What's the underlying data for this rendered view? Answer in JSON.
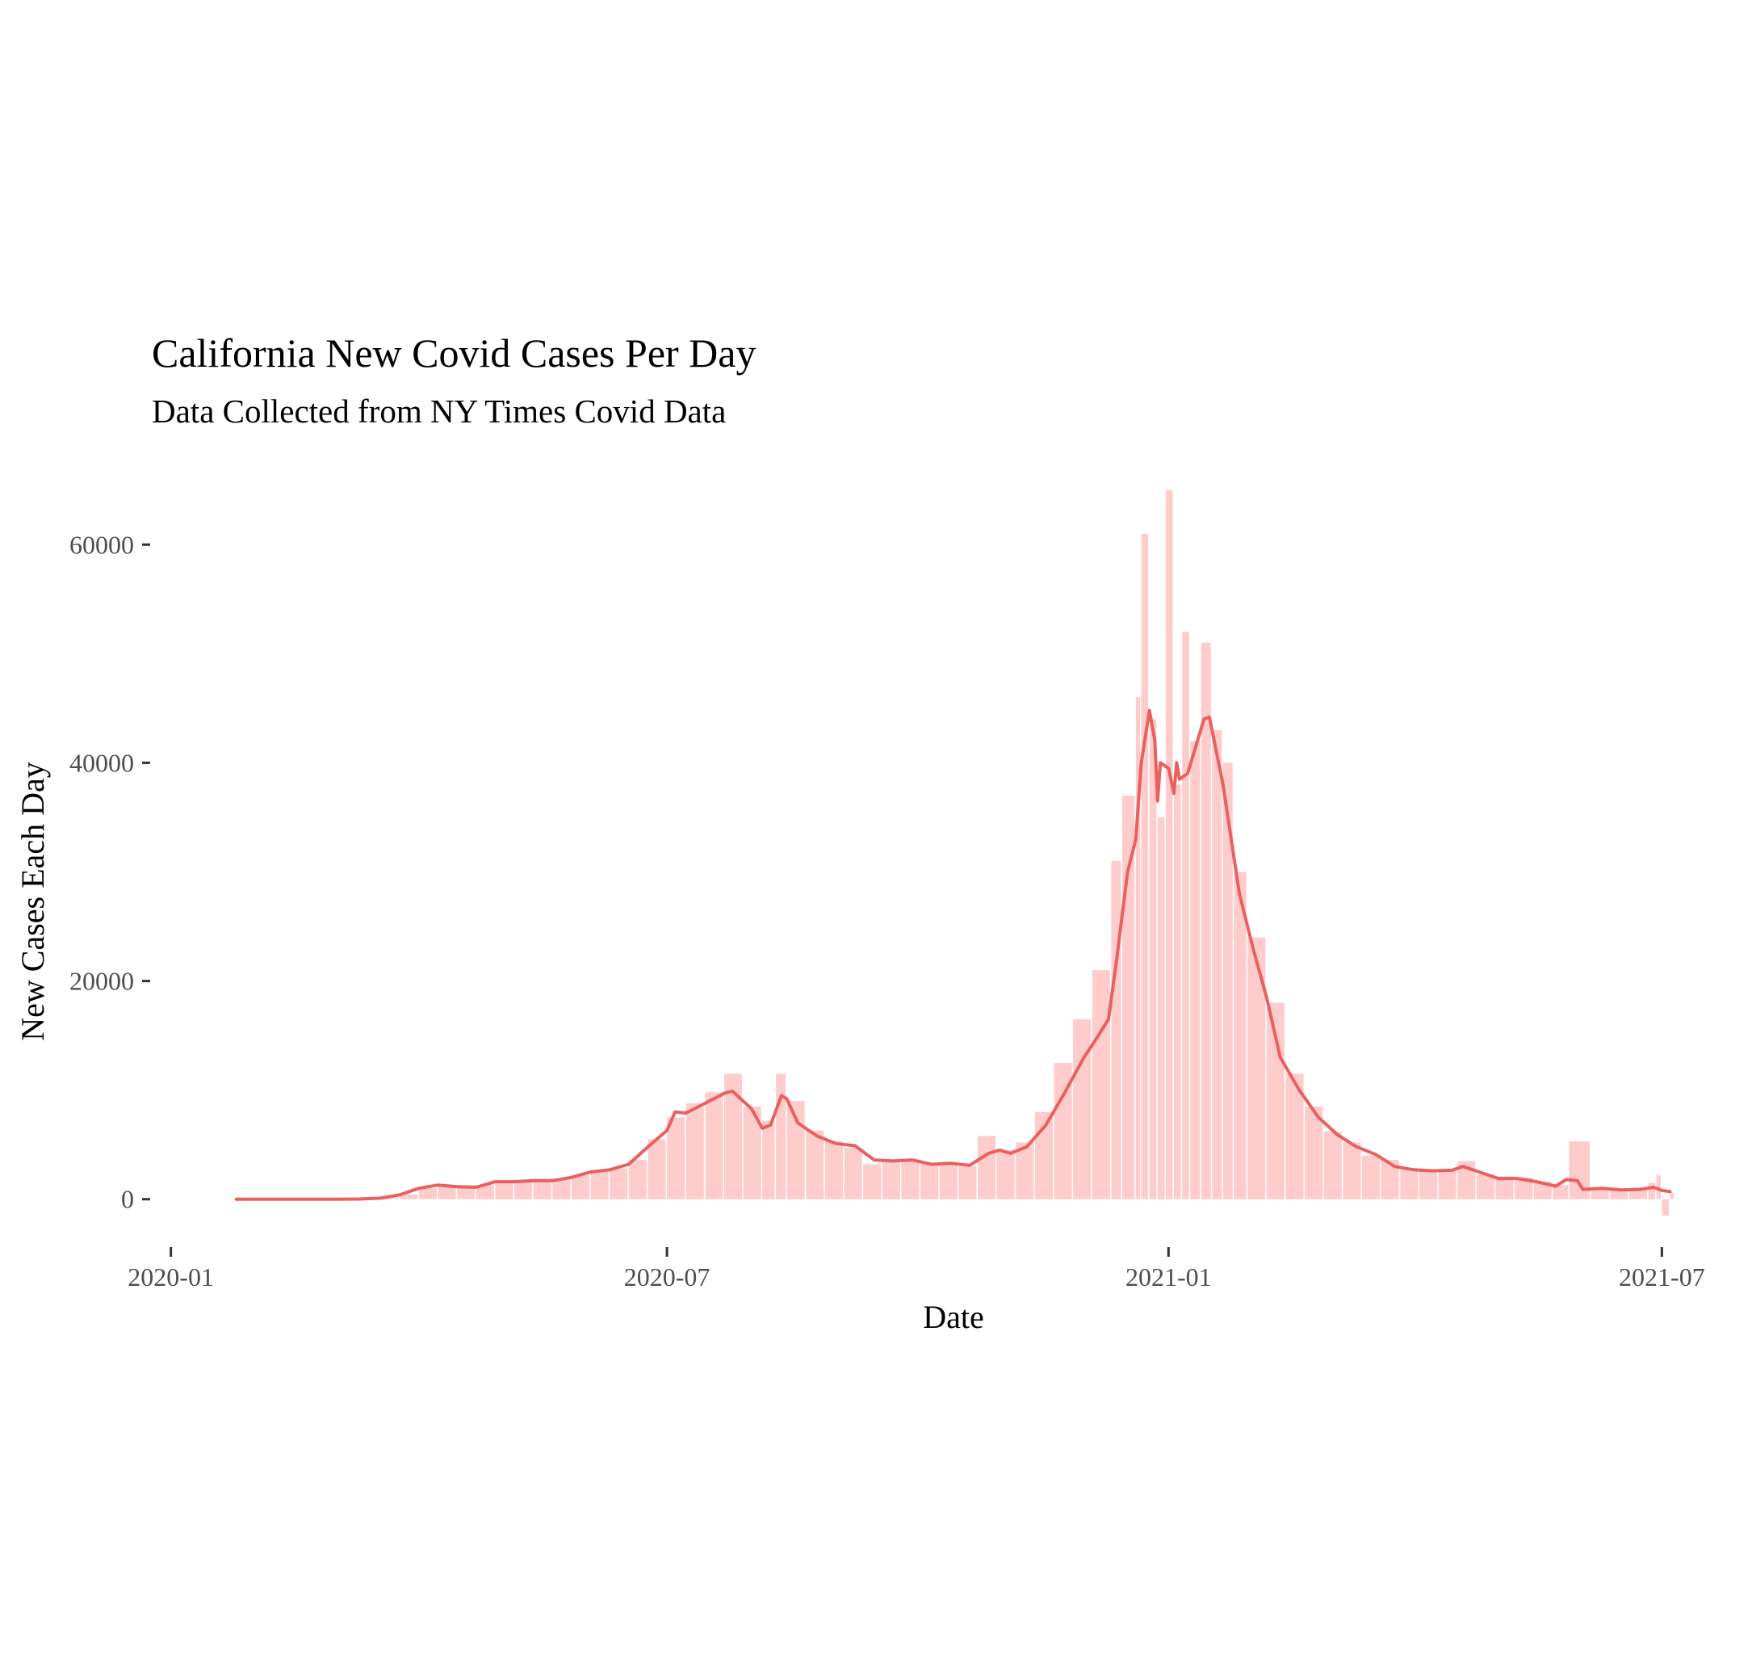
{
  "chart_data": {
    "type": "bar",
    "title": "California New Covid Cases Per Day",
    "subtitle": "Data Collected from NY Times Covid Data",
    "xlabel": "Date",
    "ylabel": "New Cases Each Day",
    "x_ticks": [
      {
        "date": "2020-01-01",
        "label": "2020-01"
      },
      {
        "date": "2020-07-01",
        "label": "2020-07"
      },
      {
        "date": "2021-01-01",
        "label": "2021-01"
      },
      {
        "date": "2021-07-01",
        "label": "2021-07"
      }
    ],
    "y_ticks": [
      0,
      20000,
      40000,
      60000
    ],
    "xlim": [
      "2019-12-25",
      "2021-07-08"
    ],
    "ylim": [
      -3500,
      65500
    ],
    "grid": false,
    "legend": "none",
    "colors": {
      "bars": "#ffcccc",
      "line": "#e8605f",
      "ticks": "#333333"
    },
    "series": [
      {
        "type": "bar",
        "values": [
          [
            "2020-01-25",
            0
          ],
          [
            "2020-03-01",
            5
          ],
          [
            "2020-03-10",
            40
          ],
          [
            "2020-03-18",
            120
          ],
          [
            "2020-03-25",
            450
          ],
          [
            "2020-04-01",
            1000
          ],
          [
            "2020-04-08",
            1200
          ],
          [
            "2020-04-15",
            1150
          ],
          [
            "2020-04-22",
            1300
          ],
          [
            "2020-04-29",
            1700
          ],
          [
            "2020-05-06",
            1600
          ],
          [
            "2020-05-13",
            1800
          ],
          [
            "2020-05-20",
            1900
          ],
          [
            "2020-05-27",
            2200
          ],
          [
            "2020-06-03",
            2600
          ],
          [
            "2020-06-10",
            2800
          ],
          [
            "2020-06-17",
            3600
          ],
          [
            "2020-06-24",
            5500
          ],
          [
            "2020-07-01",
            7500
          ],
          [
            "2020-07-08",
            8800
          ],
          [
            "2020-07-15",
            9800
          ],
          [
            "2020-07-22",
            11500
          ],
          [
            "2020-07-29",
            8500
          ],
          [
            "2020-08-05",
            7200
          ],
          [
            "2020-08-10",
            11500
          ],
          [
            "2020-08-14",
            9000
          ],
          [
            "2020-08-21",
            6300
          ],
          [
            "2020-08-28",
            5300
          ],
          [
            "2020-09-04",
            4700
          ],
          [
            "2020-09-11",
            3200
          ],
          [
            "2020-09-18",
            3400
          ],
          [
            "2020-09-25",
            3600
          ],
          [
            "2020-10-02",
            3200
          ],
          [
            "2020-10-09",
            3300
          ],
          [
            "2020-10-16",
            3000
          ],
          [
            "2020-10-23",
            5800
          ],
          [
            "2020-10-30",
            4500
          ],
          [
            "2020-11-06",
            5200
          ],
          [
            "2020-11-13",
            8000
          ],
          [
            "2020-11-20",
            12500
          ],
          [
            "2020-11-27",
            16500
          ],
          [
            "2020-12-04",
            21000
          ],
          [
            "2020-12-11",
            31000
          ],
          [
            "2020-12-15",
            37000
          ],
          [
            "2020-12-20",
            46000
          ],
          [
            "2020-12-22",
            61000
          ],
          [
            "2020-12-25",
            44000
          ],
          [
            "2020-12-28",
            35000
          ],
          [
            "2020-12-31",
            65000
          ],
          [
            "2021-01-03",
            38000
          ],
          [
            "2021-01-06",
            52000
          ],
          [
            "2021-01-09",
            42000
          ],
          [
            "2021-01-13",
            51000
          ],
          [
            "2021-01-17",
            43000
          ],
          [
            "2021-01-21",
            40000
          ],
          [
            "2021-01-25",
            30000
          ],
          [
            "2021-01-30",
            24000
          ],
          [
            "2021-02-06",
            18000
          ],
          [
            "2021-02-13",
            11500
          ],
          [
            "2021-02-20",
            8500
          ],
          [
            "2021-02-27",
            6200
          ],
          [
            "2021-03-06",
            5200
          ],
          [
            "2021-03-13",
            4000
          ],
          [
            "2021-03-20",
            3600
          ],
          [
            "2021-03-27",
            2800
          ],
          [
            "2021-04-03",
            2600
          ],
          [
            "2021-04-10",
            2700
          ],
          [
            "2021-04-17",
            3500
          ],
          [
            "2021-04-24",
            2300
          ],
          [
            "2021-05-01",
            2100
          ],
          [
            "2021-05-08",
            2000
          ],
          [
            "2021-05-15",
            1600
          ],
          [
            "2021-05-22",
            1300
          ],
          [
            "2021-05-28",
            5300
          ],
          [
            "2021-06-05",
            1000
          ],
          [
            "2021-06-12",
            900
          ],
          [
            "2021-06-19",
            950
          ],
          [
            "2021-06-26",
            1500
          ],
          [
            "2021-06-29",
            2200
          ],
          [
            "2021-07-01",
            -1500
          ],
          [
            "2021-07-04",
            600
          ]
        ]
      },
      {
        "type": "line",
        "values": [
          [
            "2020-01-25",
            0
          ],
          [
            "2020-03-01",
            0
          ],
          [
            "2020-03-10",
            20
          ],
          [
            "2020-03-18",
            100
          ],
          [
            "2020-03-25",
            400
          ],
          [
            "2020-04-01",
            1000
          ],
          [
            "2020-04-08",
            1300
          ],
          [
            "2020-04-15",
            1150
          ],
          [
            "2020-04-22",
            1100
          ],
          [
            "2020-04-29",
            1600
          ],
          [
            "2020-05-06",
            1600
          ],
          [
            "2020-05-13",
            1700
          ],
          [
            "2020-05-20",
            1700
          ],
          [
            "2020-05-27",
            2000
          ],
          [
            "2020-06-03",
            2500
          ],
          [
            "2020-06-10",
            2700
          ],
          [
            "2020-06-17",
            3200
          ],
          [
            "2020-06-24",
            4800
          ],
          [
            "2020-07-01",
            6300
          ],
          [
            "2020-07-04",
            8000
          ],
          [
            "2020-07-08",
            7900
          ],
          [
            "2020-07-15",
            8800
          ],
          [
            "2020-07-22",
            9700
          ],
          [
            "2020-07-25",
            9900
          ],
          [
            "2020-08-01",
            8300
          ],
          [
            "2020-08-05",
            6500
          ],
          [
            "2020-08-08",
            6800
          ],
          [
            "2020-08-12",
            9500
          ],
          [
            "2020-08-14",
            9200
          ],
          [
            "2020-08-18",
            7000
          ],
          [
            "2020-08-25",
            5800
          ],
          [
            "2020-09-01",
            5100
          ],
          [
            "2020-09-08",
            4900
          ],
          [
            "2020-09-15",
            3600
          ],
          [
            "2020-09-22",
            3500
          ],
          [
            "2020-09-29",
            3600
          ],
          [
            "2020-10-06",
            3200
          ],
          [
            "2020-10-13",
            3300
          ],
          [
            "2020-10-20",
            3100
          ],
          [
            "2020-10-27",
            4200
          ],
          [
            "2020-10-31",
            4500
          ],
          [
            "2020-11-04",
            4200
          ],
          [
            "2020-11-10",
            4800
          ],
          [
            "2020-11-17",
            6800
          ],
          [
            "2020-11-24",
            9800
          ],
          [
            "2020-12-01",
            13000
          ],
          [
            "2020-12-05",
            14500
          ],
          [
            "2020-12-10",
            16500
          ],
          [
            "2020-12-13",
            22000
          ],
          [
            "2020-12-17",
            30000
          ],
          [
            "2020-12-20",
            33000
          ],
          [
            "2020-12-22",
            40000
          ],
          [
            "2020-12-25",
            44800
          ],
          [
            "2020-12-27",
            42000
          ],
          [
            "2020-12-28",
            36500
          ],
          [
            "2020-12-29",
            40000
          ],
          [
            "2021-01-01",
            39500
          ],
          [
            "2021-01-03",
            37200
          ],
          [
            "2021-01-04",
            40000
          ],
          [
            "2021-01-05",
            38500
          ],
          [
            "2021-01-08",
            39000
          ],
          [
            "2021-01-11",
            41500
          ],
          [
            "2021-01-14",
            44000
          ],
          [
            "2021-01-16",
            44200
          ],
          [
            "2021-01-21",
            38000
          ],
          [
            "2021-01-27",
            28000
          ],
          [
            "2021-02-01",
            23000
          ],
          [
            "2021-02-06",
            18500
          ],
          [
            "2021-02-11",
            13000
          ],
          [
            "2021-02-18",
            10000
          ],
          [
            "2021-02-25",
            7500
          ],
          [
            "2021-03-04",
            5900
          ],
          [
            "2021-03-11",
            4800
          ],
          [
            "2021-03-18",
            4100
          ],
          [
            "2021-03-25",
            3000
          ],
          [
            "2021-04-01",
            2700
          ],
          [
            "2021-04-08",
            2600
          ],
          [
            "2021-04-15",
            2650
          ],
          [
            "2021-04-19",
            3000
          ],
          [
            "2021-04-25",
            2500
          ],
          [
            "2021-05-02",
            1900
          ],
          [
            "2021-05-09",
            1900
          ],
          [
            "2021-05-16",
            1600
          ],
          [
            "2021-05-23",
            1200
          ],
          [
            "2021-05-27",
            1800
          ],
          [
            "2021-05-31",
            1700
          ],
          [
            "2021-06-02",
            900
          ],
          [
            "2021-06-09",
            1000
          ],
          [
            "2021-06-16",
            850
          ],
          [
            "2021-06-23",
            900
          ],
          [
            "2021-06-28",
            1100
          ],
          [
            "2021-07-01",
            800
          ],
          [
            "2021-07-04",
            700
          ]
        ]
      }
    ]
  }
}
